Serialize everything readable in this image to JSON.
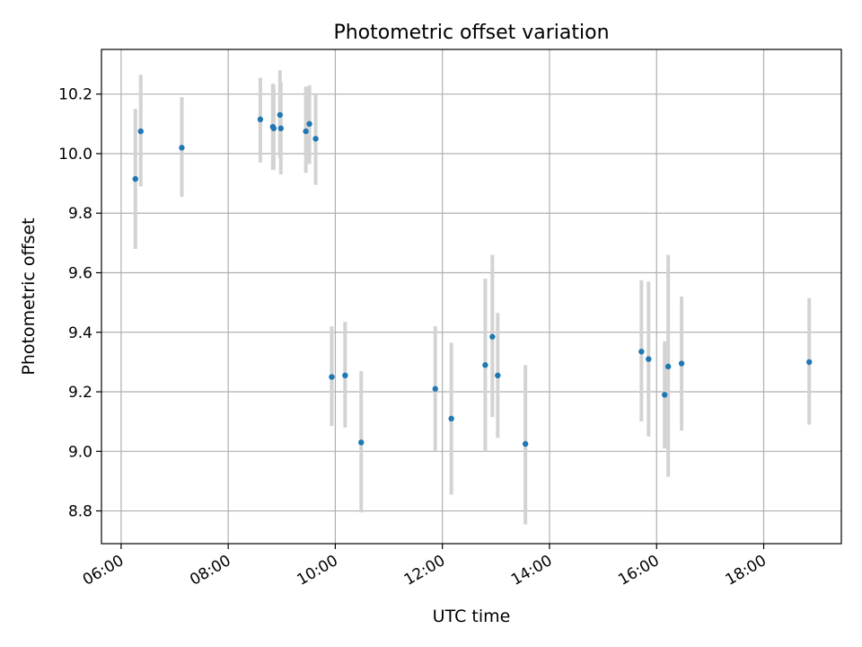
{
  "chart_data": {
    "type": "scatter",
    "title": "Photometric offset variation",
    "xlabel": "UTC time",
    "ylabel": "Photometric offset",
    "x_tick_labels": [
      "06:00",
      "08:00",
      "10:00",
      "12:00",
      "14:00",
      "16:00",
      "18:00"
    ],
    "y_tick_labels": [
      "8.8",
      "9.0",
      "9.2",
      "9.4",
      "9.6",
      "9.8",
      "10.0",
      "10.2"
    ],
    "xlim": [
      "05:38",
      "19:27"
    ],
    "ylim": [
      8.69,
      10.35
    ],
    "grid": true,
    "marker_color": "#1f77b4",
    "errorbar_color": "#d3d3d3",
    "points": [
      {
        "time": "06:16",
        "y": 9.915,
        "low": 9.68,
        "high": 10.15
      },
      {
        "time": "06:22",
        "y": 10.075,
        "low": 9.89,
        "high": 10.265
      },
      {
        "time": "07:08",
        "y": 10.02,
        "low": 9.855,
        "high": 10.19
      },
      {
        "time": "08:36",
        "y": 10.115,
        "low": 9.97,
        "high": 10.255
      },
      {
        "time": "08:50",
        "y": 10.09,
        "low": 9.945,
        "high": 10.235
      },
      {
        "time": "08:51",
        "y": 10.085,
        "low": 9.945,
        "high": 10.23
      },
      {
        "time": "08:58",
        "y": 10.13,
        "low": 9.985,
        "high": 10.28
      },
      {
        "time": "08:59",
        "y": 10.085,
        "low": 9.93,
        "high": 10.24
      },
      {
        "time": "09:27",
        "y": 10.075,
        "low": 9.935,
        "high": 10.225
      },
      {
        "time": "09:31",
        "y": 10.1,
        "low": 9.965,
        "high": 10.23
      },
      {
        "time": "09:38",
        "y": 10.05,
        "low": 9.895,
        "high": 10.2
      },
      {
        "time": "09:56",
        "y": 9.25,
        "low": 9.085,
        "high": 9.42
      },
      {
        "time": "10:11",
        "y": 9.255,
        "low": 9.08,
        "high": 9.435
      },
      {
        "time": "10:29",
        "y": 9.03,
        "low": 8.795,
        "high": 9.27
      },
      {
        "time": "11:52",
        "y": 9.21,
        "low": 9.0,
        "high": 9.42
      },
      {
        "time": "12:10",
        "y": 9.11,
        "low": 8.855,
        "high": 9.365
      },
      {
        "time": "12:48",
        "y": 9.29,
        "low": 9.0,
        "high": 9.58
      },
      {
        "time": "12:56",
        "y": 9.385,
        "low": 9.115,
        "high": 9.66
      },
      {
        "time": "13:02",
        "y": 9.255,
        "low": 9.045,
        "high": 9.465
      },
      {
        "time": "13:33",
        "y": 9.025,
        "low": 8.755,
        "high": 9.29
      },
      {
        "time": "15:43",
        "y": 9.335,
        "low": 9.1,
        "high": 9.575
      },
      {
        "time": "15:51",
        "y": 9.31,
        "low": 9.05,
        "high": 9.57
      },
      {
        "time": "16:09",
        "y": 9.19,
        "low": 9.01,
        "high": 9.37
      },
      {
        "time": "16:13",
        "y": 9.285,
        "low": 8.915,
        "high": 9.66
      },
      {
        "time": "16:28",
        "y": 9.295,
        "low": 9.07,
        "high": 9.52
      },
      {
        "time": "18:51",
        "y": 9.3,
        "low": 9.09,
        "high": 9.515
      }
    ]
  }
}
